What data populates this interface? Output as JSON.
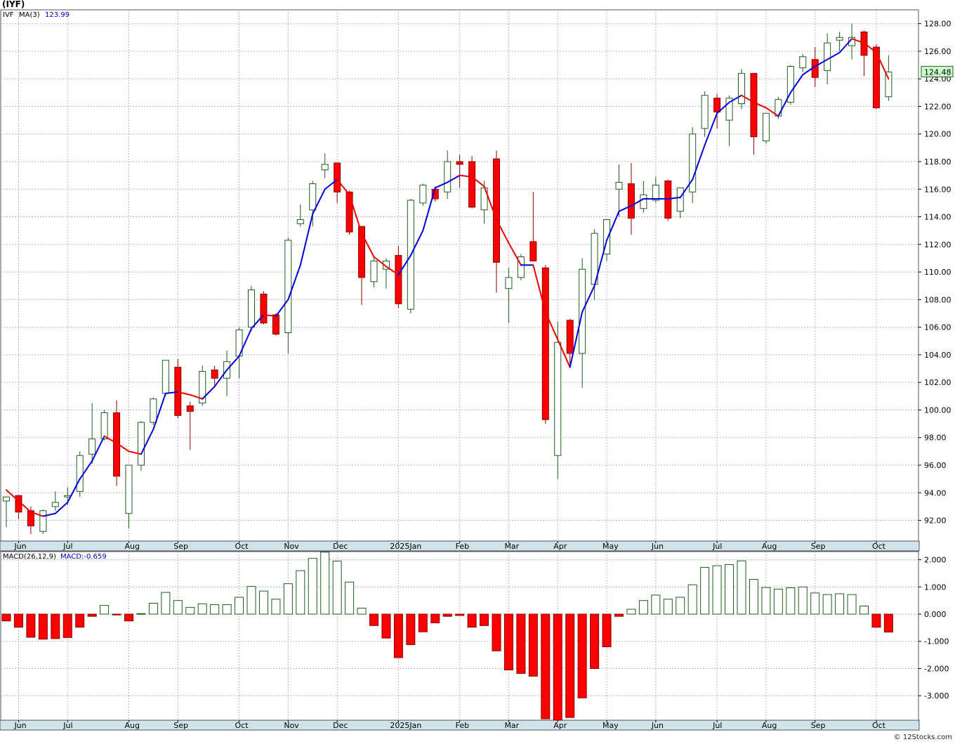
{
  "title": "(IYF)",
  "footer": "© 12Stocks.com",
  "colors": {
    "up": "#ffffff",
    "up_stroke": "#1f5e1f",
    "down": "#ff0000",
    "down_stroke": "#8b0000",
    "ma_up": "#0000dd",
    "ma_down": "#ee0000",
    "grid": "#b8b8b8",
    "axisbar": "#cfe3ea",
    "price_box": "#ccffcc"
  },
  "price_panel": {
    "legend_symbol": "IVF",
    "legend_ma": "MA(3)",
    "legend_ma_value": "123.99",
    "current_price": "124.48"
  },
  "macd_panel": {
    "legend_label": "MACD(26,12,9)",
    "legend_value": "MACD:-0.659"
  },
  "month_labels": [
    "Jun",
    "Jul",
    "Aug",
    "Sep",
    "Oct",
    "Nov",
    "Dec",
    "2025Jan",
    "Feb",
    "Mar",
    "Apr",
    "May",
    "Jun",
    "Jul",
    "Aug",
    "Sep",
    "Oct"
  ],
  "chart_data": [
    {
      "type": "candlestick",
      "series_name": "IVF",
      "ylim": [
        90.5,
        129.0
      ],
      "yticks": [
        "92.00",
        "94.00",
        "96.00",
        "98.00",
        "100.00",
        "102.00",
        "104.00",
        "106.00",
        "108.00",
        "110.00",
        "112.00",
        "114.00",
        "116.00",
        "118.00",
        "120.00",
        "122.00",
        "124.00",
        "126.00",
        "128.00"
      ],
      "grid": true,
      "ohlc": [
        [
          93.4,
          93.7,
          91.5,
          93.7
        ],
        [
          93.8,
          93.8,
          92.1,
          92.6
        ],
        [
          92.7,
          93.0,
          91.0,
          91.6
        ],
        [
          91.2,
          92.8,
          91.0,
          92.7
        ],
        [
          93.0,
          94.1,
          92.7,
          93.3
        ],
        [
          93.7,
          94.4,
          93.1,
          93.8
        ],
        [
          94.1,
          97.0,
          93.7,
          96.7
        ],
        [
          96.8,
          100.5,
          96.1,
          97.9
        ],
        [
          97.9,
          100.0,
          97.8,
          99.8
        ],
        [
          99.8,
          100.7,
          94.5,
          95.2
        ],
        [
          92.5,
          96.0,
          91.4,
          96.0
        ],
        [
          96.0,
          99.2,
          95.6,
          99.1
        ],
        [
          99.1,
          100.9,
          98.9,
          100.8
        ],
        [
          101.2,
          103.6,
          101.0,
          103.6
        ],
        [
          103.1,
          103.7,
          99.4,
          99.6
        ],
        [
          100.3,
          100.6,
          97.1,
          99.9
        ],
        [
          100.5,
          103.2,
          100.3,
          102.8
        ],
        [
          102.9,
          103.2,
          101.6,
          102.3
        ],
        [
          102.3,
          104.3,
          101.0,
          103.5
        ],
        [
          103.9,
          106.0,
          102.3,
          105.8
        ],
        [
          106.0,
          109.0,
          105.7,
          108.7
        ],
        [
          108.4,
          108.6,
          106.2,
          106.3
        ],
        [
          106.9,
          107.0,
          105.4,
          105.5
        ],
        [
          105.6,
          112.5,
          104.1,
          112.3
        ],
        [
          113.5,
          114.9,
          113.3,
          113.8
        ],
        [
          114.5,
          116.6,
          113.3,
          116.4
        ],
        [
          117.4,
          118.6,
          116.8,
          117.8
        ],
        [
          117.9,
          117.9,
          115.0,
          115.8
        ],
        [
          115.8,
          115.9,
          112.7,
          112.9
        ],
        [
          113.3,
          113.3,
          107.6,
          109.6
        ],
        [
          109.3,
          111.2,
          108.9,
          110.8
        ],
        [
          110.2,
          111.0,
          108.8,
          110.8
        ],
        [
          111.2,
          111.9,
          107.4,
          107.7
        ],
        [
          107.3,
          115.3,
          107.0,
          115.2
        ],
        [
          115.0,
          116.4,
          114.8,
          116.3
        ],
        [
          116.0,
          116.2,
          115.1,
          115.3
        ],
        [
          115.8,
          118.8,
          115.3,
          118.0
        ],
        [
          118.0,
          118.5,
          116.1,
          117.8
        ],
        [
          118.0,
          118.4,
          114.6,
          114.7
        ],
        [
          114.5,
          116.6,
          113.5,
          116.1
        ],
        [
          118.2,
          118.8,
          108.5,
          110.7
        ],
        [
          108.8,
          110.3,
          106.3,
          109.6
        ],
        [
          109.6,
          111.3,
          109.4,
          111.1
        ],
        [
          112.2,
          115.8,
          111.1,
          110.8
        ],
        [
          110.3,
          110.5,
          99.0,
          99.3
        ],
        [
          96.7,
          106.4,
          95.0,
          104.9
        ],
        [
          106.5,
          106.6,
          103.3,
          104.1
        ],
        [
          104.1,
          111.0,
          101.6,
          110.2
        ],
        [
          109.1,
          113.1,
          108.0,
          112.8
        ],
        [
          111.3,
          113.8,
          110.8,
          113.8
        ],
        [
          116.0,
          117.8,
          114.0,
          116.5
        ],
        [
          116.4,
          117.9,
          112.7,
          113.9
        ],
        [
          114.6,
          116.6,
          114.3,
          115.6
        ],
        [
          115.2,
          116.9,
          115.0,
          116.3
        ],
        [
          116.6,
          116.7,
          113.7,
          113.9
        ],
        [
          114.4,
          115.9,
          113.9,
          116.1
        ],
        [
          115.8,
          120.5,
          115.0,
          120.0
        ],
        [
          120.4,
          123.1,
          119.8,
          122.8
        ],
        [
          122.6,
          122.9,
          120.4,
          121.6
        ],
        [
          121.0,
          122.8,
          119.1,
          122.6
        ],
        [
          122.2,
          124.7,
          121.8,
          124.4
        ],
        [
          124.4,
          124.4,
          118.5,
          119.8
        ],
        [
          119.5,
          121.5,
          119.3,
          121.5
        ],
        [
          121.3,
          122.7,
          121.1,
          122.5
        ],
        [
          122.3,
          125.0,
          122.1,
          124.9
        ],
        [
          124.8,
          125.8,
          124.5,
          125.6
        ],
        [
          125.4,
          126.3,
          123.4,
          124.1
        ],
        [
          124.6,
          127.3,
          123.6,
          126.6
        ],
        [
          126.8,
          127.4,
          126.0,
          127.0
        ],
        [
          126.4,
          128.0,
          125.4,
          127.0
        ],
        [
          127.4,
          127.5,
          124.2,
          125.7
        ],
        [
          126.3,
          126.5,
          121.8,
          121.9
        ],
        [
          122.7,
          125.7,
          122.4,
          124.5
        ]
      ],
      "ma3": [
        94.2,
        93.4,
        92.6,
        92.3,
        92.5,
        93.3,
        95.0,
        96.3,
        98.1,
        97.6,
        97.0,
        96.8,
        98.6,
        101.2,
        101.3,
        101.1,
        100.8,
        101.7,
        102.9,
        103.9,
        105.9,
        106.9,
        106.8,
        108.0,
        110.5,
        114.2,
        116.0,
        116.7,
        115.6,
        112.8,
        111.1,
        110.4,
        109.8,
        111.2,
        113.0,
        116.1,
        116.5,
        117.0,
        116.9,
        116.2,
        113.8,
        112.1,
        110.5,
        110.5,
        107.1,
        105.1,
        103.1,
        107.1,
        109.0,
        112.3,
        114.4,
        114.8,
        115.3,
        115.3,
        115.3,
        115.4,
        116.7,
        119.2,
        121.5,
        122.3,
        122.8,
        122.3,
        121.9,
        121.3,
        123.0,
        124.3,
        124.9,
        125.4,
        125.9,
        126.9,
        126.6,
        125.9,
        124.0
      ]
    },
    {
      "type": "bar",
      "series_name": "MACD(26,12,9)",
      "ylim": [
        -3.9,
        2.3
      ],
      "yticks": [
        "-3.000",
        "-2.000",
        "-1.000",
        "0.000",
        "1.000",
        "2.000"
      ],
      "grid": true,
      "values": [
        -0.25,
        -0.48,
        -0.85,
        -0.92,
        -0.9,
        -0.86,
        -0.48,
        -0.08,
        0.32,
        -0.03,
        -0.25,
        0.02,
        0.4,
        0.8,
        0.5,
        0.25,
        0.38,
        0.35,
        0.35,
        0.62,
        1.02,
        0.85,
        0.55,
        1.12,
        1.6,
        2.05,
        2.28,
        1.95,
        1.18,
        0.22,
        -0.42,
        -0.88,
        -1.6,
        -1.12,
        -0.65,
        -0.32,
        -0.08,
        -0.05,
        -0.48,
        -0.42,
        -1.35,
        -2.05,
        -2.18,
        -2.28,
        -3.85,
        -3.9,
        -3.8,
        -3.08,
        -2.0,
        -1.2,
        -0.08,
        0.18,
        0.5,
        0.7,
        0.55,
        0.62,
        1.08,
        1.72,
        1.78,
        1.82,
        1.96,
        1.28,
        0.98,
        0.92,
        0.97,
        1.0,
        0.78,
        0.72,
        0.75,
        0.72,
        0.3,
        -0.48,
        -0.66
      ]
    }
  ]
}
